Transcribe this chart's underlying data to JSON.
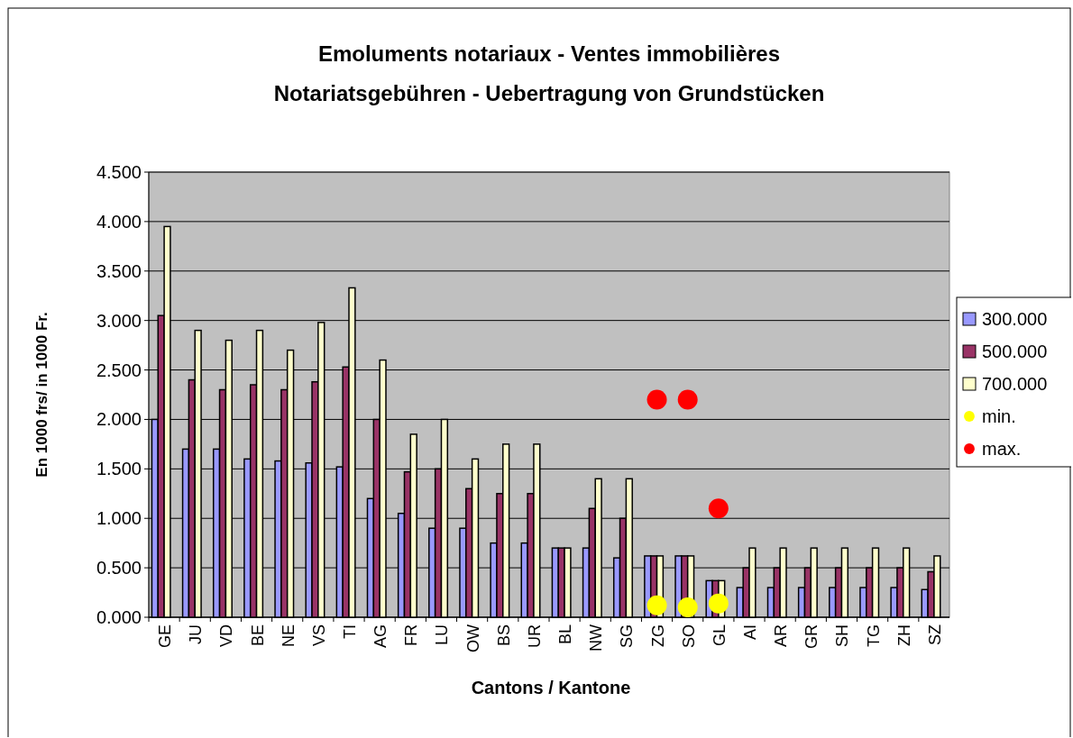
{
  "chart_data": {
    "type": "bar",
    "title": "Emoluments notariaux - Ventes immobilières",
    "subtitle": "Notariatsgebühren - Uebertragung von Grundstücken",
    "xlabel": "Cantons / Kantone",
    "ylabel": "En 1000 frs/ in 1000 Fr.",
    "categories": [
      "GE",
      "JU",
      "VD",
      "BE",
      "NE",
      "VS",
      "TI",
      "AG",
      "FR",
      "LU",
      "OW",
      "BS",
      "UR",
      "BL",
      "NW",
      "SG",
      "ZG",
      "SO",
      "GL",
      "AI",
      "AR",
      "GR",
      "SH",
      "TG",
      "ZH",
      "SZ"
    ],
    "series": [
      {
        "name": "300.000",
        "color": "#9999ff",
        "values": [
          2.0,
          1.7,
          1.7,
          1.6,
          1.58,
          1.56,
          1.52,
          1.2,
          1.05,
          0.9,
          0.9,
          0.75,
          0.75,
          0.7,
          0.7,
          0.6,
          0.62,
          0.62,
          0.37,
          0.3,
          0.3,
          0.3,
          0.3,
          0.3,
          0.3,
          0.28
        ]
      },
      {
        "name": "500.000",
        "color": "#993366",
        "values": [
          3.05,
          2.4,
          2.3,
          2.35,
          2.3,
          2.38,
          2.53,
          2.0,
          1.47,
          1.5,
          1.3,
          1.25,
          1.25,
          0.7,
          1.1,
          1.0,
          0.62,
          0.62,
          0.37,
          0.5,
          0.5,
          0.5,
          0.5,
          0.5,
          0.5,
          0.46
        ]
      },
      {
        "name": "700.000",
        "color": "#ffffcc",
        "values": [
          3.95,
          2.9,
          2.8,
          2.9,
          2.7,
          2.98,
          3.33,
          2.6,
          1.85,
          2.0,
          1.6,
          1.75,
          1.75,
          0.7,
          1.4,
          1.4,
          0.62,
          0.62,
          0.37,
          0.7,
          0.7,
          0.7,
          0.7,
          0.7,
          0.7,
          0.62
        ]
      },
      {
        "name": "min.",
        "type": "scatter",
        "color": "#ffff00",
        "values": [
          null,
          null,
          null,
          null,
          null,
          null,
          null,
          null,
          null,
          null,
          null,
          null,
          null,
          null,
          null,
          null,
          0.12,
          0.1,
          0.14,
          null,
          null,
          null,
          null,
          null,
          null,
          null
        ]
      },
      {
        "name": "max.",
        "type": "scatter",
        "color": "#ff0000",
        "values": [
          null,
          null,
          null,
          null,
          null,
          null,
          null,
          null,
          null,
          null,
          null,
          null,
          null,
          null,
          null,
          null,
          2.2,
          2.2,
          1.1,
          null,
          null,
          null,
          null,
          null,
          null,
          null
        ]
      }
    ],
    "ylim": [
      0,
      4.5
    ],
    "yticks": [
      {
        "value": 0,
        "label": "0.000"
      },
      {
        "value": 0.5,
        "label": "0.500"
      },
      {
        "value": 1,
        "label": "1.000"
      },
      {
        "value": 1.5,
        "label": "1.500"
      },
      {
        "value": 2,
        "label": "2.000"
      },
      {
        "value": 2.5,
        "label": "2.500"
      },
      {
        "value": 3,
        "label": "3.000"
      },
      {
        "value": 3.5,
        "label": "3.500"
      },
      {
        "value": 4,
        "label": "4.000"
      },
      {
        "value": 4.5,
        "label": "4.500"
      }
    ],
    "grid": "y",
    "legend": "right",
    "marker": "circle"
  }
}
